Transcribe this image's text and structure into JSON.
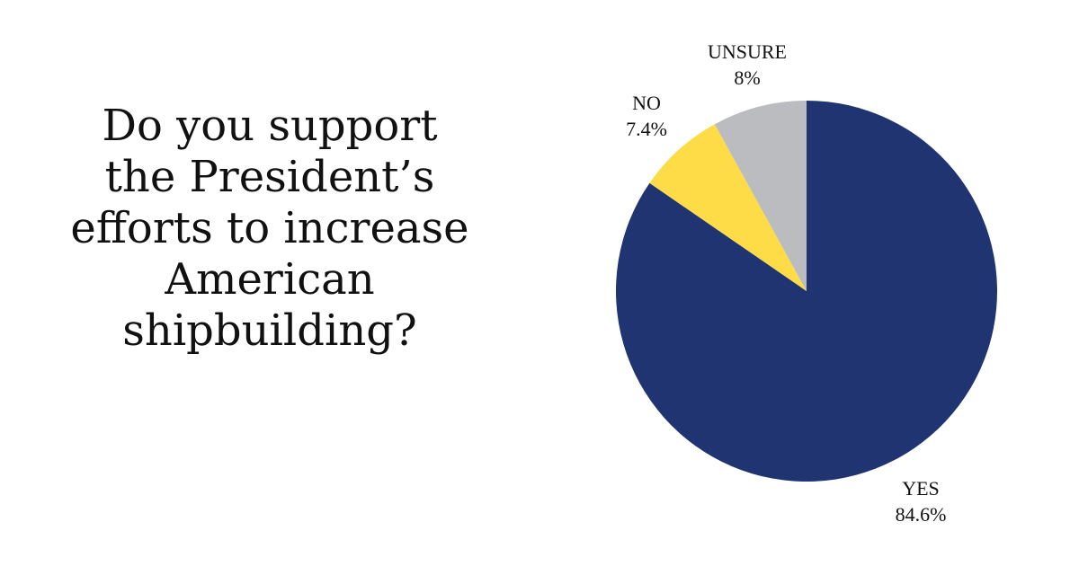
{
  "question": {
    "lines": [
      "Do you support",
      "the President’s",
      "efforts to increase",
      "American",
      "shipbuilding?"
    ]
  },
  "chart_data": {
    "type": "pie",
    "title": "",
    "start_angle_deg": 0,
    "direction": "clockwise",
    "slices": [
      {
        "label": "YES",
        "value": 84.6,
        "value_label": "84.6%",
        "color": "#1f3471",
        "label_position": "bottom-right"
      },
      {
        "label": "NO",
        "value": 7.4,
        "value_label": "7.4%",
        "color": "#fddc48",
        "label_position": "upper-left"
      },
      {
        "label": "UNSURE",
        "value": 8,
        "value_label": "8%",
        "color": "#bbbcc0",
        "label_position": "top"
      }
    ]
  }
}
